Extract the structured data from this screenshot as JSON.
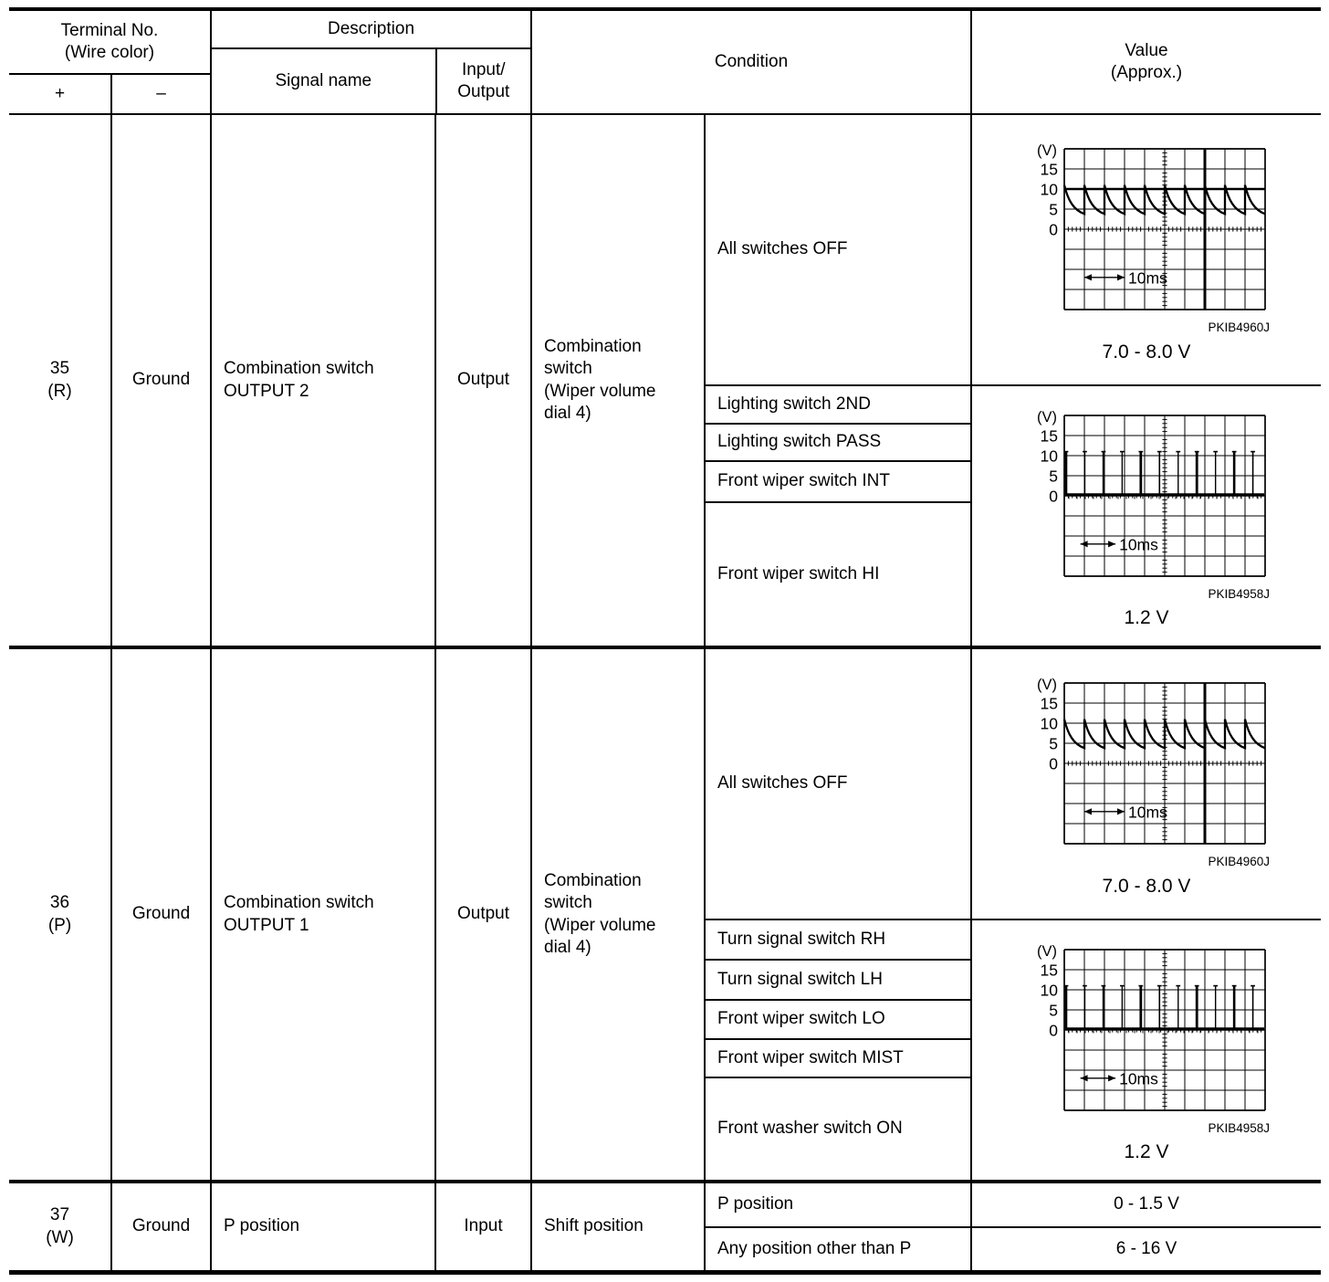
{
  "header": {
    "terminal_no": "Terminal No.\n(Wire color)",
    "plus": "+",
    "minus": "–",
    "description": "Description",
    "signal_name": "Signal name",
    "input_output": "Input/\nOutput",
    "condition": "Condition",
    "value": "Value\n(Approx.)"
  },
  "rows": [
    {
      "terminal": "35\n(R)",
      "wire_minus": "Ground",
      "signal_name": "Combination switch\nOUTPUT 2",
      "input_output": "Output",
      "condition_group": "Combination\nswitch\n(Wiper volume\ndial 4)",
      "blocks": [
        {
          "conditions": [
            "All switches OFF"
          ]
        },
        {
          "conditions": [
            "Lighting switch 2ND",
            "Lighting switch PASS",
            "Front wiper switch INT",
            "Front wiper switch HI"
          ]
        }
      ]
    },
    {
      "terminal": "36\n(P)",
      "wire_minus": "Ground",
      "signal_name": "Combination switch\nOUTPUT 1",
      "input_output": "Output",
      "condition_group": "Combination\nswitch\n(Wiper volume\ndial 4)",
      "blocks": [
        {
          "conditions": [
            "All switches OFF"
          ]
        },
        {
          "conditions": [
            "Turn signal switch RH",
            "Turn signal switch LH",
            "Front wiper switch LO",
            "Front wiper switch MIST",
            "Front washer switch ON"
          ]
        }
      ]
    },
    {
      "terminal": "37\n(W)",
      "wire_minus": "Ground",
      "signal_name": "P position",
      "input_output": "Input",
      "condition_group": "Shift position",
      "blocks": [
        {
          "conditions": [
            "P position"
          ],
          "value": "0 - 1.5 V"
        },
        {
          "conditions": [
            "Any position other than P"
          ],
          "value": "6 - 16 V"
        }
      ]
    }
  ],
  "chart_data": [
    {
      "id": "scope-terminal-35-all-switches-off",
      "type": "line",
      "waveform": "sawtooth-decay",
      "ylabel": "(V)",
      "yticks": [
        15,
        10,
        5,
        0
      ],
      "ylim": [
        -20,
        20
      ],
      "volts_per_div": 5,
      "ms_per_div": 5,
      "grid_cols": 10,
      "grid_rows": 8,
      "zero_row": 4,
      "peak_v": 11,
      "min_v": 3.8,
      "cycles": 10,
      "marker_hline_v": 10,
      "marker_vline_div": 7,
      "time_label": "10ms",
      "arrow_from_div": 1,
      "arrow_to_div": 3,
      "code": "PKIB4960J",
      "value_label": "7.0 - 8.0 V"
    },
    {
      "id": "scope-terminal-35-switch-operated",
      "type": "line",
      "waveform": "pulse-train",
      "ylabel": "(V)",
      "yticks": [
        15,
        10,
        5,
        0
      ],
      "ylim": [
        -20,
        20
      ],
      "volts_per_div": 5,
      "ms_per_div": 5,
      "grid_cols": 10,
      "grid_rows": 8,
      "zero_row": 4,
      "high_v": 11,
      "low_v": 0,
      "pulse_count": 11,
      "pulse_spacing_div": 0.93,
      "marker_hline_v": null,
      "marker_vline_div": null,
      "time_label": "10ms",
      "arrow_from_div": 0.8,
      "arrow_to_div": 2.55,
      "code": "PKIB4958J",
      "value_label": "1.2 V"
    },
    {
      "id": "scope-terminal-36-all-switches-off",
      "type": "line",
      "waveform": "sawtooth-decay",
      "ylabel": "(V)",
      "yticks": [
        15,
        10,
        5,
        0
      ],
      "ylim": [
        -20,
        20
      ],
      "volts_per_div": 5,
      "ms_per_div": 5,
      "grid_cols": 10,
      "grid_rows": 8,
      "zero_row": 4,
      "peak_v": 11,
      "min_v": 3.8,
      "cycles": 10,
      "marker_hline_v": null,
      "marker_vline_div": 7,
      "time_label": "10ms",
      "arrow_from_div": 1,
      "arrow_to_div": 3,
      "code": "PKIB4960J",
      "value_label": "7.0 - 8.0 V"
    },
    {
      "id": "scope-terminal-36-switch-operated",
      "type": "line",
      "waveform": "pulse-train",
      "ylabel": "(V)",
      "yticks": [
        15,
        10,
        5,
        0
      ],
      "ylim": [
        -20,
        20
      ],
      "volts_per_div": 5,
      "ms_per_div": 5,
      "grid_cols": 10,
      "grid_rows": 8,
      "zero_row": 4,
      "high_v": 11,
      "low_v": 0,
      "pulse_count": 11,
      "pulse_spacing_div": 0.93,
      "marker_hline_v": null,
      "marker_vline_div": null,
      "time_label": "10ms",
      "arrow_from_div": 0.8,
      "arrow_to_div": 2.55,
      "code": "PKIB4958J",
      "value_label": "1.2 V"
    }
  ]
}
